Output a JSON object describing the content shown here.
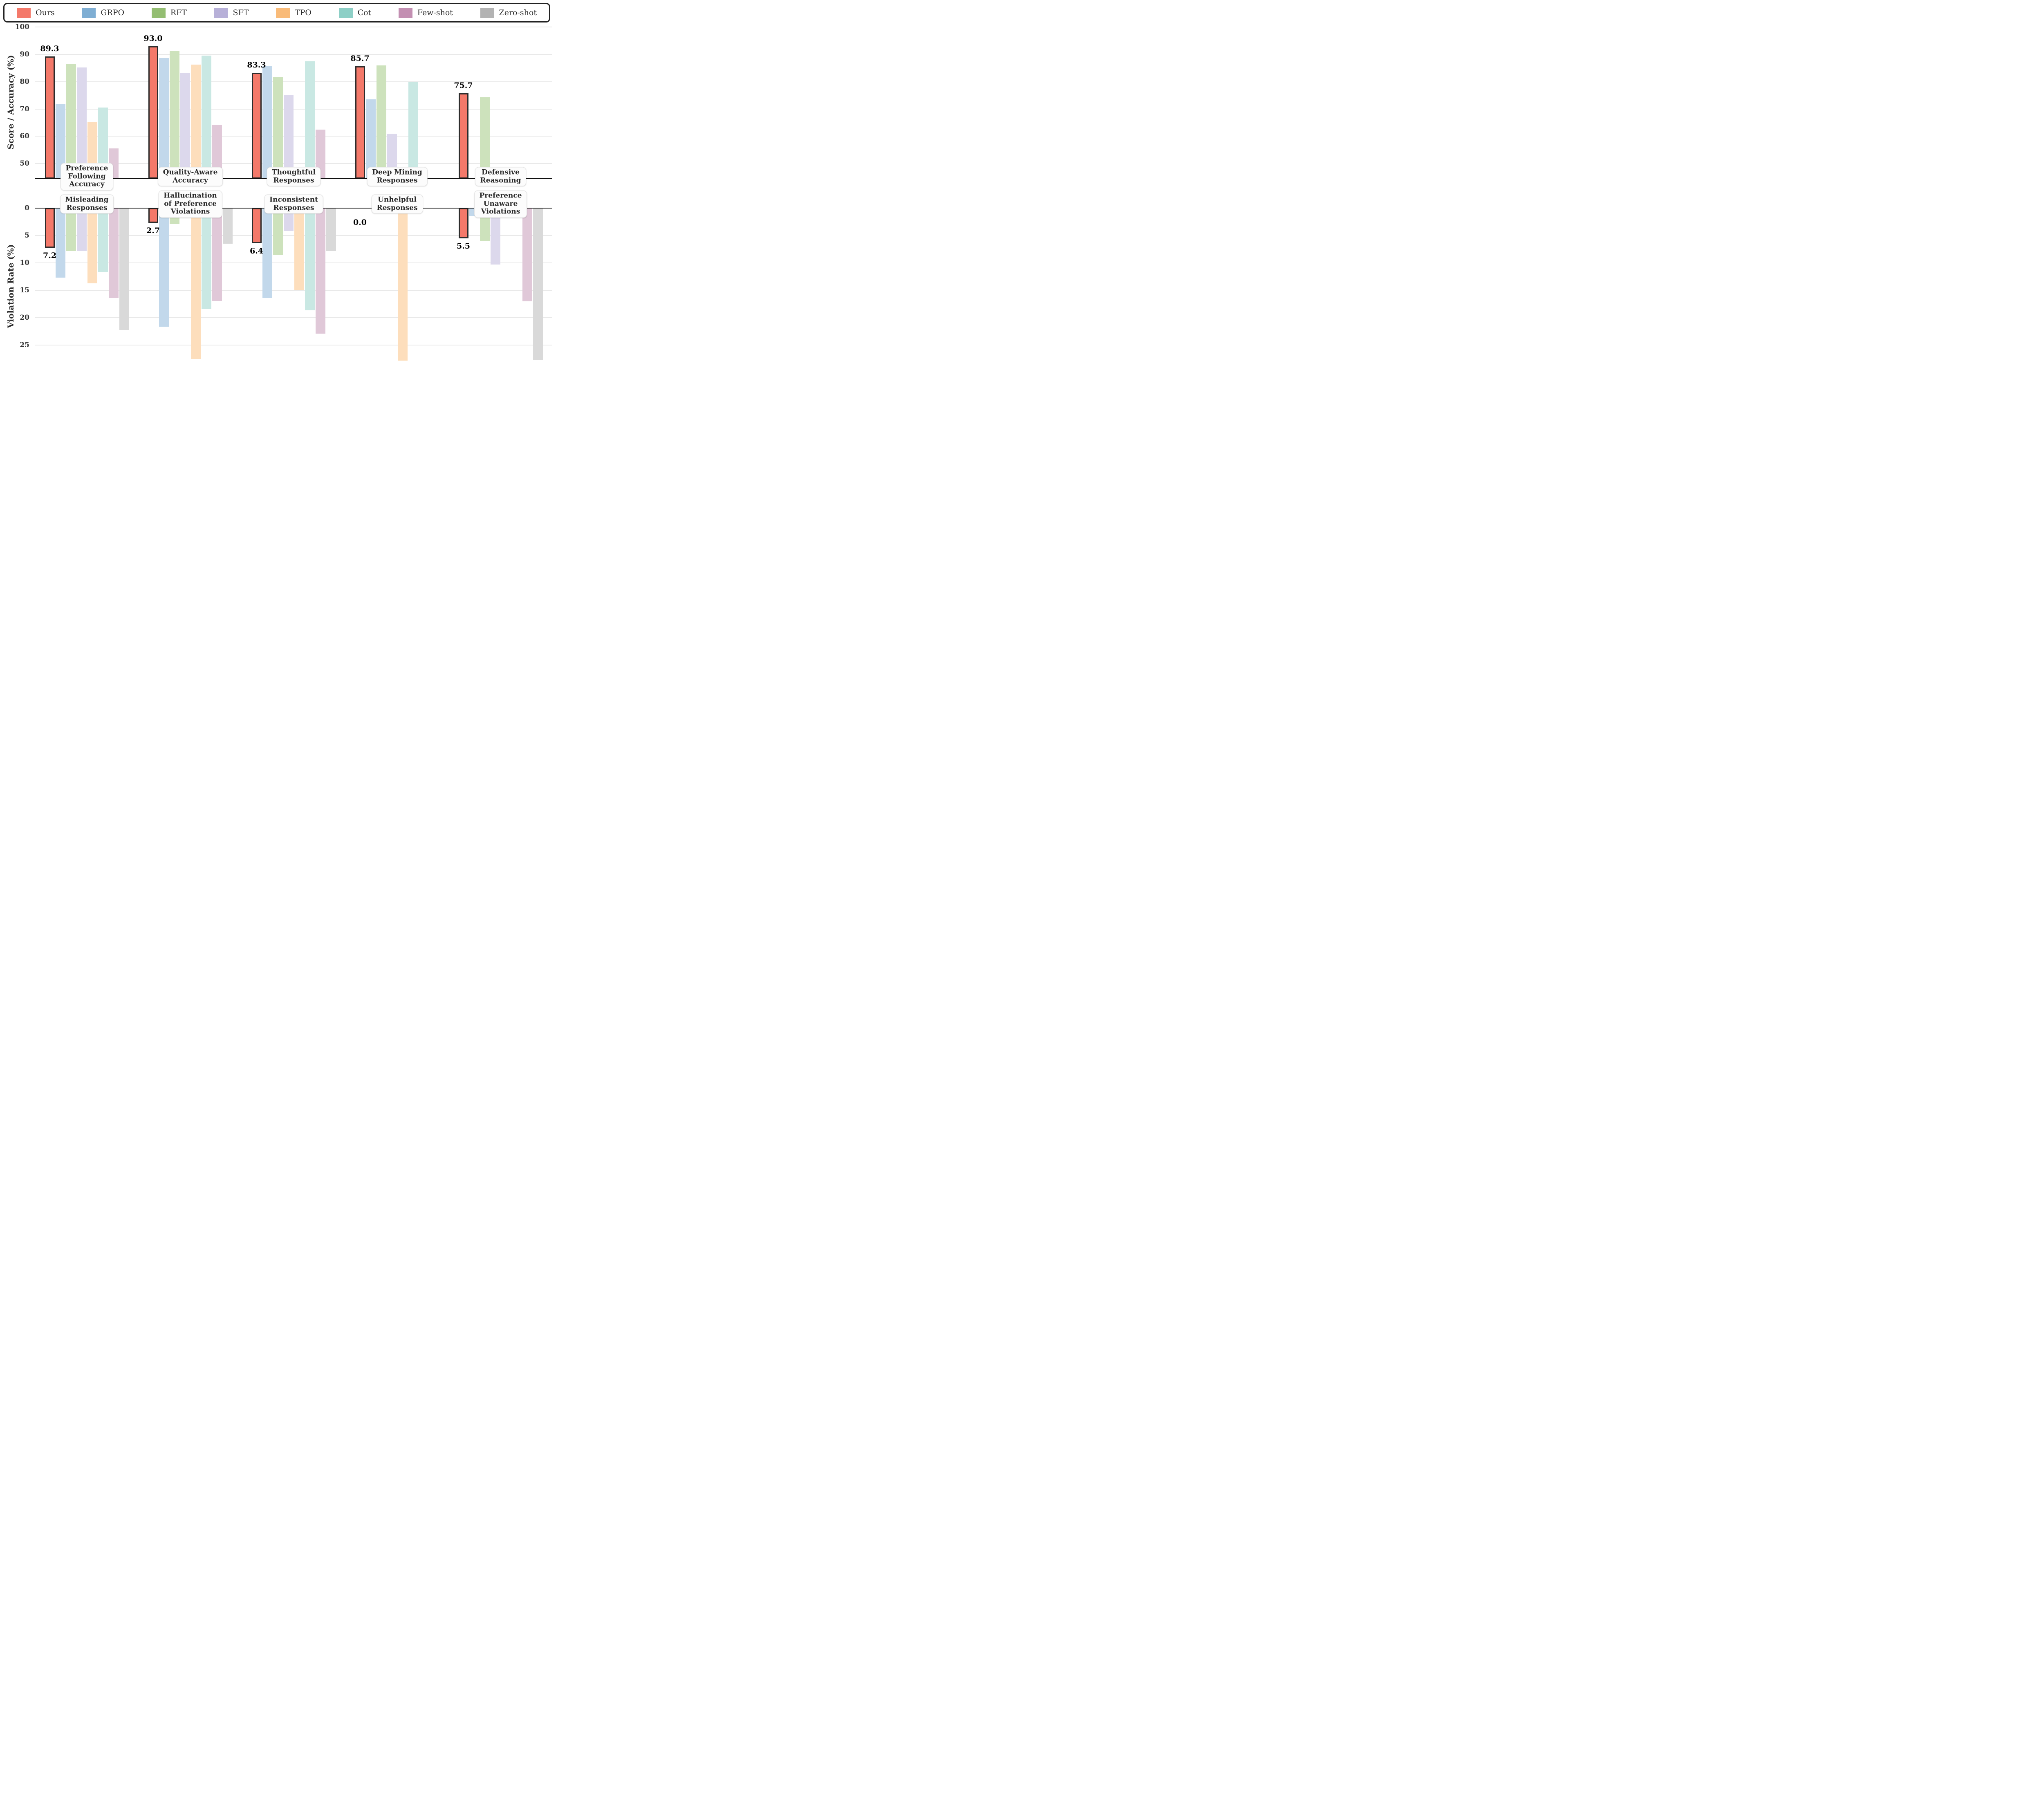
{
  "figure": {
    "background": "#ffffff",
    "grid_color": "#e9e9e9",
    "spine_color": "#111111",
    "ours_edge_color": "#2d2d2d",
    "text_color": "#2b2b2b"
  },
  "legend": {
    "items": [
      {
        "label": "Ours",
        "color": "#f4796a"
      },
      {
        "label": "GRPO",
        "color": "#7faed3"
      },
      {
        "label": "RFT",
        "color": "#94be72"
      },
      {
        "label": "SFT",
        "color": "#b7b0d8"
      },
      {
        "label": "TPO",
        "color": "#f9bb79"
      },
      {
        "label": "Cot",
        "color": "#8dcfc6"
      },
      {
        "label": "Few-shot",
        "color": "#c38fb2"
      },
      {
        "label": "Zero-shot",
        "color": "#b3b3b3"
      }
    ]
  },
  "chart_data": [
    {
      "type": "bar",
      "panel": "top",
      "ylabel": "Score / Accuracy (%)",
      "ylim": [
        44.5,
        100.9
      ],
      "yticks": [
        50,
        60,
        70,
        80,
        90,
        100
      ],
      "grid": true,
      "legend_position": "top",
      "categories": [
        "Preference\nFollowing\nAccuracy",
        "Quality-Aware\nAccuracy",
        "Thoughtful\nResponses",
        "Deep Mining\nResponses",
        "Defensive\nReasoning"
      ],
      "series": [
        {
          "name": "Ours",
          "color": "#f4796a",
          "fill": "#f4796a",
          "labeled": true,
          "values": [
            89.3,
            93.0,
            83.3,
            85.7,
            75.7
          ]
        },
        {
          "name": "GRPO",
          "color": "#7faed3",
          "fill": "#c2d8eb",
          "labeled": false,
          "values": [
            71.8,
            88.7,
            85.6,
            73.5,
            null
          ]
        },
        {
          "name": "RFT",
          "color": "#94be72",
          "fill": "#cde2bc",
          "labeled": false,
          "values": [
            86.5,
            91.2,
            81.6,
            85.9,
            74.2
          ]
        },
        {
          "name": "SFT",
          "color": "#b7b0d8",
          "fill": "#dcd8ec",
          "labeled": false,
          "values": [
            85.2,
            83.2,
            75.2,
            60.9,
            null
          ]
        },
        {
          "name": "TPO",
          "color": "#f9bb79",
          "fill": "#fddebc",
          "labeled": false,
          "values": [
            65.3,
            86.2,
            null,
            null,
            null
          ]
        },
        {
          "name": "Cot",
          "color": "#8dcfc6",
          "fill": "#c9e8e3",
          "labeled": false,
          "values": [
            70.5,
            89.5,
            87.5,
            80.0,
            null
          ]
        },
        {
          "name": "Few-shot",
          "color": "#c38fb2",
          "fill": "#e0c8d8",
          "labeled": false,
          "values": [
            55.5,
            64.2,
            62.5,
            null,
            null
          ]
        },
        {
          "name": "Zero-shot",
          "color": "#b3b3b3",
          "fill": "#d9d9d9",
          "labeled": false,
          "values": [
            null,
            null,
            null,
            null,
            null
          ]
        }
      ]
    },
    {
      "type": "bar",
      "panel": "bottom",
      "inverted": true,
      "ylabel": "Violation Rate (%)",
      "ylim": [
        0,
        28.1
      ],
      "yticks": [
        0,
        5,
        10,
        15,
        20,
        25
      ],
      "grid": true,
      "categories": [
        "Misleading\nResponses",
        "Hallucination\nof Preference\nViolations",
        "Inconsistent\nResponses",
        "Unhelpful\nResponses",
        "Preference\nUnaware\nViolations"
      ],
      "series": [
        {
          "name": "Ours",
          "color": "#f4796a",
          "fill": "#f4796a",
          "labeled": true,
          "values": [
            7.2,
            2.7,
            6.4,
            0.0,
            5.5
          ]
        },
        {
          "name": "GRPO",
          "color": "#7faed3",
          "fill": "#c2d8eb",
          "labeled": false,
          "values": [
            12.7,
            21.6,
            16.4,
            null,
            1.4
          ]
        },
        {
          "name": "RFT",
          "color": "#94be72",
          "fill": "#cde2bc",
          "labeled": false,
          "values": [
            7.8,
            2.9,
            8.5,
            null,
            6.0
          ]
        },
        {
          "name": "SFT",
          "color": "#b7b0d8",
          "fill": "#dcd8ec",
          "labeled": false,
          "values": [
            7.8,
            1.4,
            4.2,
            null,
            10.3
          ]
        },
        {
          "name": "TPO",
          "color": "#f9bb79",
          "fill": "#fddebc",
          "labeled": false,
          "values": [
            13.7,
            27.5,
            14.9,
            27.8,
            1.4
          ]
        },
        {
          "name": "Cot",
          "color": "#8dcfc6",
          "fill": "#c9e8e3",
          "labeled": false,
          "values": [
            11.7,
            18.4,
            18.6,
            null,
            null
          ]
        },
        {
          "name": "Few-shot",
          "color": "#c38fb2",
          "fill": "#e0c8d8",
          "labeled": false,
          "values": [
            16.4,
            16.9,
            22.9,
            null,
            17.0
          ]
        },
        {
          "name": "Zero-shot",
          "color": "#b3b3b3",
          "fill": "#d9d9d9",
          "labeled": false,
          "values": [
            22.2,
            6.5,
            7.8,
            null,
            27.7
          ]
        }
      ]
    }
  ]
}
